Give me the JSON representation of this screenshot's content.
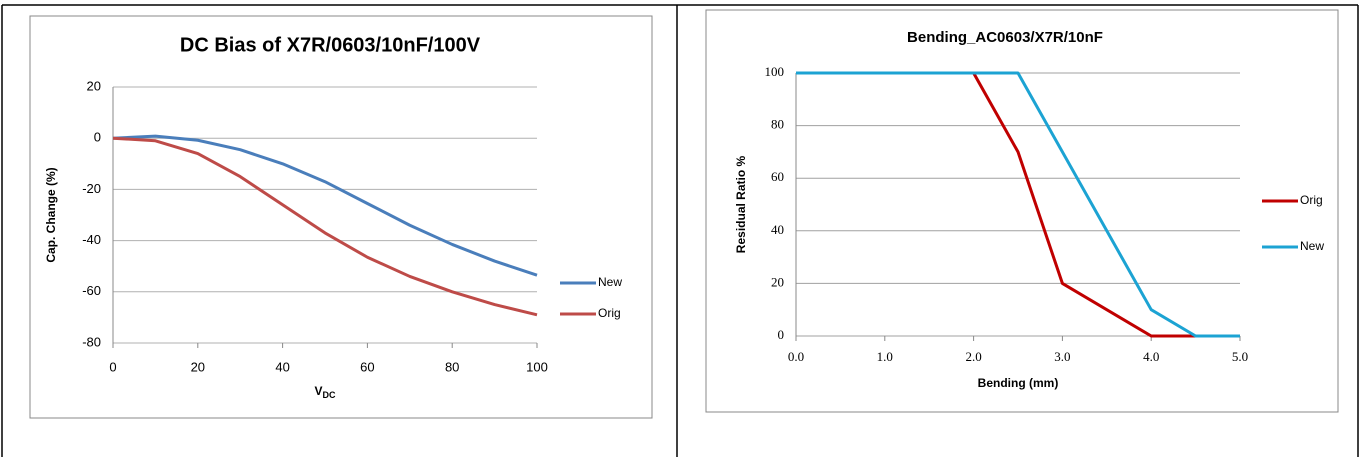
{
  "chart_data": [
    {
      "type": "line",
      "title": "DC Bias of X7R/0603/10nF/100V",
      "xlabel": "V",
      "xlabel_sub": "DC",
      "ylabel": "Cap. Change (%)",
      "x": [
        0,
        10,
        20,
        30,
        40,
        50,
        60,
        70,
        80,
        90,
        100
      ],
      "series": [
        {
          "name": "New",
          "color": "#4a7ebb",
          "values": [
            0,
            0.8,
            -0.8,
            -4.5,
            -10,
            -17,
            -25.5,
            -34,
            -41.5,
            -48,
            -53.5
          ]
        },
        {
          "name": "Orig",
          "color": "#be4b48",
          "values": [
            0,
            -1,
            -6,
            -15,
            -26,
            -37,
            -46.5,
            -54,
            -60,
            -65,
            -69
          ]
        }
      ],
      "xlim": [
        0,
        100
      ],
      "xticks": [
        0,
        20,
        40,
        60,
        80,
        100
      ],
      "ylim": [
        -80,
        20
      ],
      "yticks": [
        -80,
        -60,
        -40,
        -20,
        0,
        20
      ],
      "grid": true,
      "legend": "right"
    },
    {
      "type": "line",
      "title": "Bending_AC0603/X7R/10nF",
      "xlabel": "Bending (mm)",
      "ylabel": "Residual Ratio %",
      "series": [
        {
          "name": "Orig",
          "color": "#c00000",
          "x": [
            0,
            2,
            2.5,
            3,
            4,
            5
          ],
          "values": [
            100,
            100,
            70,
            20,
            0,
            0
          ]
        },
        {
          "name": "New",
          "color": "#1ca3d3",
          "x": [
            0,
            2.5,
            4,
            4.5,
            5
          ],
          "values": [
            100,
            100,
            10,
            0,
            0
          ]
        }
      ],
      "xlim": [
        0,
        5
      ],
      "xticks": [
        {
          "value": 0,
          "label": "0.0"
        },
        {
          "value": 1,
          "label": "1.0"
        },
        {
          "value": 2,
          "label": "2.0"
        },
        {
          "value": 3,
          "label": "3.0"
        },
        {
          "value": 4,
          "label": "4.0"
        },
        {
          "value": 5,
          "label": "5.0"
        }
      ],
      "ylim": [
        0,
        100
      ],
      "yticks": [
        0,
        20,
        40,
        60,
        80,
        100
      ],
      "grid": true,
      "legend": "right"
    }
  ]
}
